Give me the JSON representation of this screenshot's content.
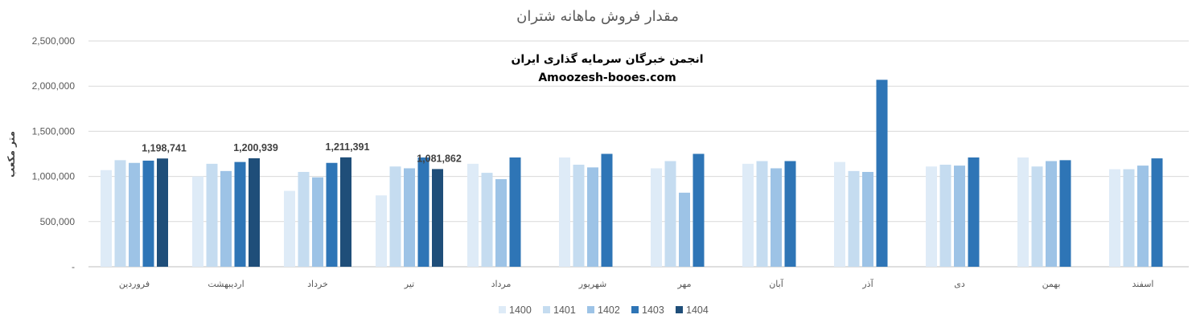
{
  "chart_data": {
    "type": "bar",
    "title": "مقدار فروش ماهانه شتران",
    "ylabel": "متر مکعب",
    "xlabel": "",
    "ylim": [
      0,
      2500000
    ],
    "yticks": [
      0,
      500000,
      1000000,
      1500000,
      2000000,
      2500000
    ],
    "ytick_labels": [
      "-",
      "500,000",
      "1,000,000",
      "1,500,000",
      "2,000,000",
      "2,500,000"
    ],
    "grid": true,
    "legend_position": "bottom",
    "categories": [
      "فروردین",
      "اردیبهشت",
      "خرداد",
      "تیر",
      "مرداد",
      "شهریور",
      "مهر",
      "آبان",
      "آذر",
      "دی",
      "بهمن",
      "اسفند"
    ],
    "series": [
      {
        "name": "1400",
        "color": "#DEEBF7",
        "values": [
          1070000,
          1000000,
          840000,
          790000,
          1140000,
          1210000,
          1090000,
          1140000,
          1160000,
          1110000,
          1210000,
          1080000
        ]
      },
      {
        "name": "1401",
        "color": "#C5DCF0",
        "values": [
          1180000,
          1140000,
          1050000,
          1110000,
          1040000,
          1130000,
          1170000,
          1170000,
          1060000,
          1130000,
          1110000,
          1080000
        ]
      },
      {
        "name": "1402",
        "color": "#9DC3E6",
        "values": [
          1150000,
          1060000,
          990000,
          1090000,
          970000,
          1100000,
          820000,
          1090000,
          1050000,
          1120000,
          1170000,
          1120000
        ]
      },
      {
        "name": "1403",
        "color": "#2E75B6",
        "values": [
          1175000,
          1160000,
          1150000,
          1210000,
          1210000,
          1250000,
          1250000,
          1170000,
          2070000,
          1210000,
          1180000,
          1200000
        ]
      },
      {
        "name": "1404",
        "color": "#1F4E79",
        "values": [
          1198741,
          1200939,
          1211391,
          1081862,
          null,
          null,
          null,
          null,
          null,
          null,
          null,
          null
        ]
      }
    ],
    "data_labels": [
      {
        "series": "1404",
        "category": "فروردین",
        "text": "1,198,741"
      },
      {
        "series": "1404",
        "category": "اردیبهشت",
        "text": "1,200,939"
      },
      {
        "series": "1404",
        "category": "خرداد",
        "text": "1,211,391"
      },
      {
        "series": "1404",
        "category": "تیر",
        "text": "1,081,862"
      }
    ],
    "watermark": {
      "line1": "انجمن خبرگان سرمایه گذاری ایران",
      "line2": "Amoozesh-booes.com"
    }
  }
}
